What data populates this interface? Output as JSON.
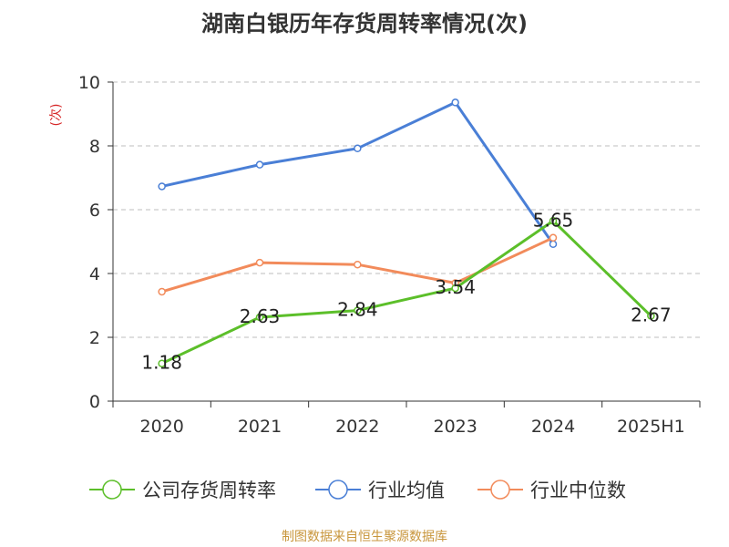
{
  "chart_data": {
    "type": "line",
    "title": "湖南白银历年存货周转率情况(次)",
    "ylabel": "(次)",
    "xlabel": "",
    "categories": [
      "2020",
      "2021",
      "2022",
      "2023",
      "2024",
      "2025H1"
    ],
    "ylim": [
      0,
      10
    ],
    "yticks": [
      0,
      2,
      4,
      6,
      8,
      10
    ],
    "grid": true,
    "legend": "bottom",
    "series": [
      {
        "name": "公司存货周转率",
        "color": "#5cbf2a",
        "values": [
          1.18,
          2.63,
          2.84,
          3.54,
          5.65,
          2.67
        ],
        "labels": [
          "1.18",
          "2.63",
          "2.84",
          "3.54",
          "5.65",
          "2.67"
        ]
      },
      {
        "name": "行业均值",
        "color": "#4a7fd6",
        "values": [
          6.73,
          7.41,
          7.92,
          9.36,
          4.92,
          null
        ]
      },
      {
        "name": "行业中位数",
        "color": "#f28b5b",
        "values": [
          3.43,
          4.34,
          4.28,
          3.7,
          5.12,
          null
        ]
      }
    ]
  },
  "source": "制图数据来自恒生聚源数据库"
}
